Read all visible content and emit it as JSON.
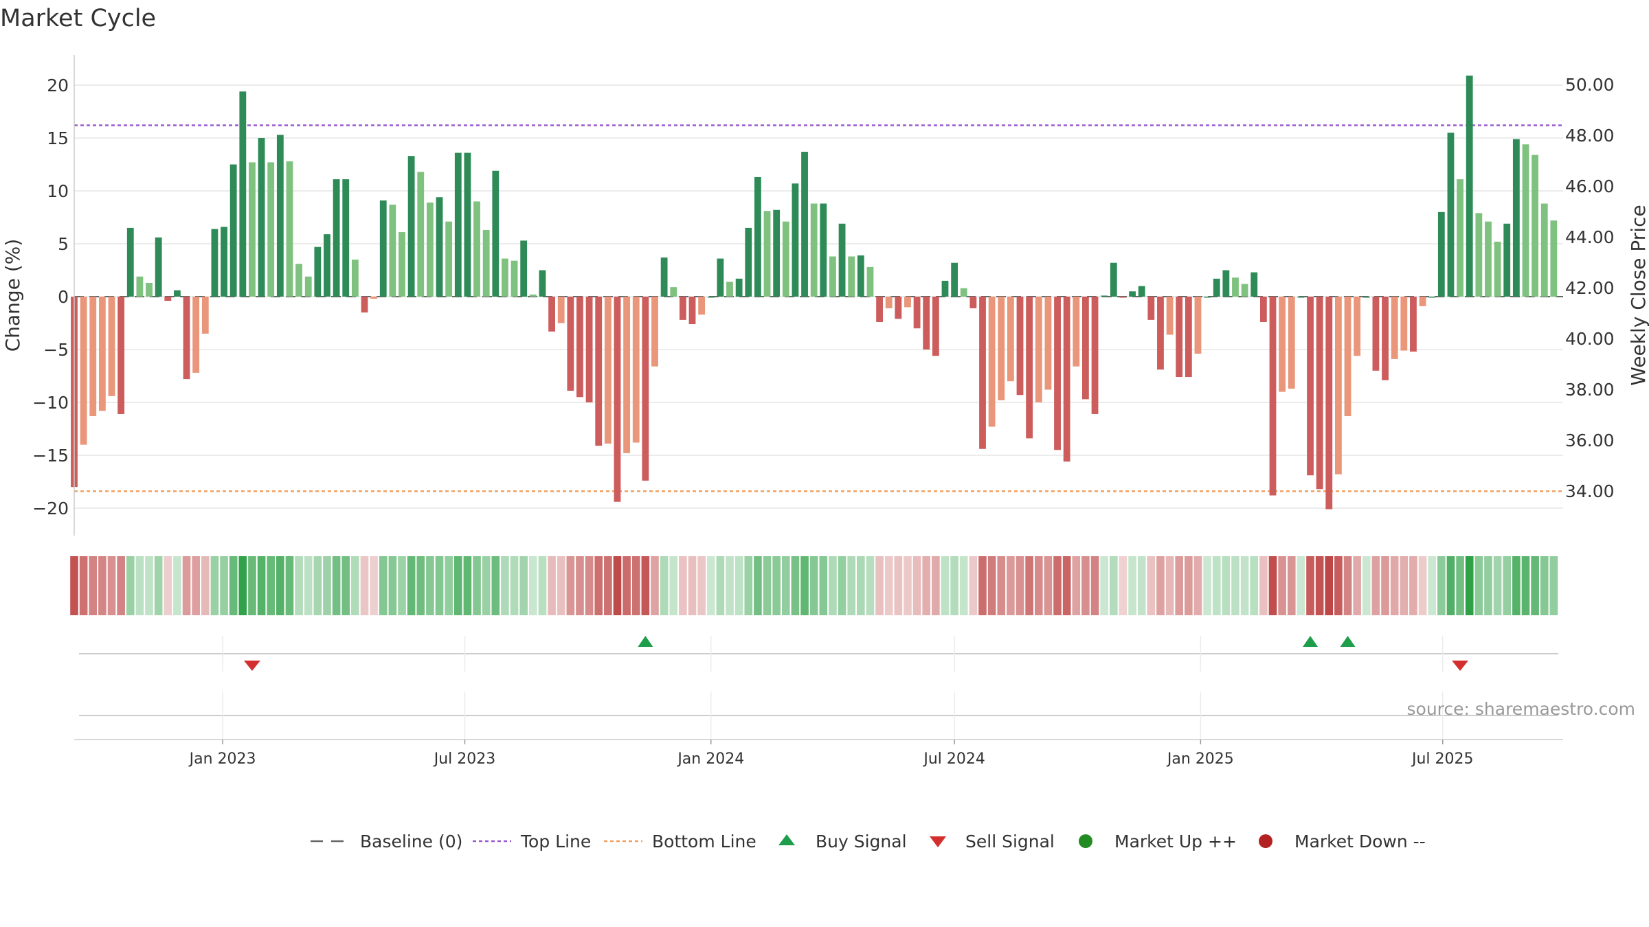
{
  "chart_data": {
    "type": "bar",
    "title": "Market Cycle",
    "ylabel": "Change (%)",
    "y2label": "Weekly Close Price",
    "ylim": [
      -22.5,
      23
    ],
    "yticks": [
      20,
      15,
      10,
      5,
      0,
      -5,
      -10,
      -15,
      -20
    ],
    "ytick_labels": [
      "20",
      "15",
      "10",
      "5",
      "0",
      "−5",
      "−10",
      "−15",
      "−20"
    ],
    "y2lim": [
      32.4,
      51.4
    ],
    "y2ticks": [
      50,
      48,
      46,
      44,
      42,
      40,
      38,
      36,
      34
    ],
    "y2tick_labels": [
      "50.00",
      "48.00",
      "46.00",
      "44.00",
      "42.00",
      "40.00",
      "38.00",
      "36.00",
      "34.00"
    ],
    "xlim": [
      "2022-09-12",
      "2025-09-29"
    ],
    "xticks": [
      {
        "date": "2023-01-01",
        "label": "Jan 2023"
      },
      {
        "date": "2023-07-01",
        "label": "Jul 2023"
      },
      {
        "date": "2024-01-01",
        "label": "Jan 2024"
      },
      {
        "date": "2024-07-01",
        "label": "Jul 2024"
      },
      {
        "date": "2025-01-01",
        "label": "Jan 2025"
      },
      {
        "date": "2025-07-01",
        "label": "Jul 2025"
      }
    ],
    "start_week": "2022-09-12",
    "week_days": 7,
    "values": [
      -18,
      -14,
      -11.3,
      -10.8,
      -9.4,
      -11.1,
      6.5,
      1.9,
      1.3,
      5.6,
      -0.4,
      0.6,
      -7.8,
      -7.2,
      -3.5,
      6.4,
      6.6,
      12.5,
      19.4,
      12.7,
      15,
      12.7,
      15.3,
      12.8,
      3.1,
      1.9,
      4.7,
      5.9,
      11.1,
      11.1,
      3.5,
      -1.5,
      -0.2,
      9.1,
      8.7,
      6.1,
      13.3,
      11.8,
      8.9,
      9.4,
      7.1,
      13.6,
      13.6,
      9,
      6.3,
      11.9,
      3.6,
      3.4,
      5.3,
      0.2,
      2.5,
      -3.3,
      -2.5,
      -8.9,
      -9.5,
      -10,
      -14.1,
      -13.9,
      -19.4,
      -14.8,
      -13.8,
      -17.4,
      -6.6,
      3.7,
      0.9,
      -2.2,
      -2.6,
      -1.7,
      0,
      3.6,
      1.4,
      1.7,
      6.5,
      11.3,
      8.1,
      8.2,
      7.1,
      10.7,
      13.7,
      8.8,
      8.8,
      3.8,
      6.9,
      3.8,
      3.9,
      2.8,
      -2.4,
      -1.1,
      -2.1,
      -1,
      -3,
      -5,
      -5.6,
      1.5,
      3.2,
      0.8,
      -1.1,
      -14.4,
      -12.3,
      -9.8,
      -8,
      -9.3,
      -13.4,
      -10,
      -8.8,
      -14.5,
      -15.6,
      -6.6,
      -9.7,
      -11.1,
      0.1,
      3.2,
      -0.1,
      0.5,
      1,
      -2.2,
      -6.9,
      -3.6,
      -7.6,
      -7.6,
      -5.4,
      0,
      1.7,
      2.5,
      1.8,
      1.2,
      2.3,
      -2.4,
      -18.8,
      -9,
      -8.7,
      0,
      -16.9,
      -18.2,
      -20.1,
      -16.8,
      -11.3,
      -5.6,
      0,
      -7,
      -7.9,
      -5.9,
      -5.1,
      -5.2,
      -0.9,
      0,
      8,
      15.5,
      11.1,
      20.9,
      7.9,
      7.1,
      5.2,
      6.9,
      14.9,
      14.4,
      13.4,
      8.8,
      7.2
    ],
    "reference_lines": {
      "baseline": 0,
      "top": 16.2,
      "bottom": -18.4
    },
    "signals": [
      {
        "type": "sell",
        "date": "2023-01-23"
      },
      {
        "type": "buy",
        "date": "2023-11-13"
      },
      {
        "type": "buy",
        "date": "2025-03-24"
      },
      {
        "type": "buy",
        "date": "2025-04-21"
      },
      {
        "type": "sell",
        "date": "2025-07-14"
      }
    ],
    "legend": [
      {
        "key": "baseline",
        "label": "Baseline (0)"
      },
      {
        "key": "top",
        "label": "Top Line"
      },
      {
        "key": "bottom",
        "label": "Bottom Line"
      },
      {
        "key": "buy",
        "label": "Buy Signal"
      },
      {
        "key": "sell",
        "label": "Sell Signal"
      },
      {
        "key": "up",
        "label": "Market Up ++"
      },
      {
        "key": "down",
        "label": "Market Down --"
      }
    ],
    "legend_position": "bottom-center",
    "source": "source: sharemaestro.com",
    "grid": true
  },
  "colors": {
    "up_strong": "#2e8b57",
    "up_light": "#7fc17f",
    "down_strong": "#cd5c5c",
    "down_light": "#e9967a",
    "top_line": "#9b59d0",
    "bottom_line": "#f0a060",
    "baseline": "#666666",
    "buy": "#1e9e4a",
    "sell": "#d32f2f",
    "market_up": "#228b22",
    "market_down": "#b22222",
    "grid": "#e6e6e6",
    "text": "#333333"
  }
}
